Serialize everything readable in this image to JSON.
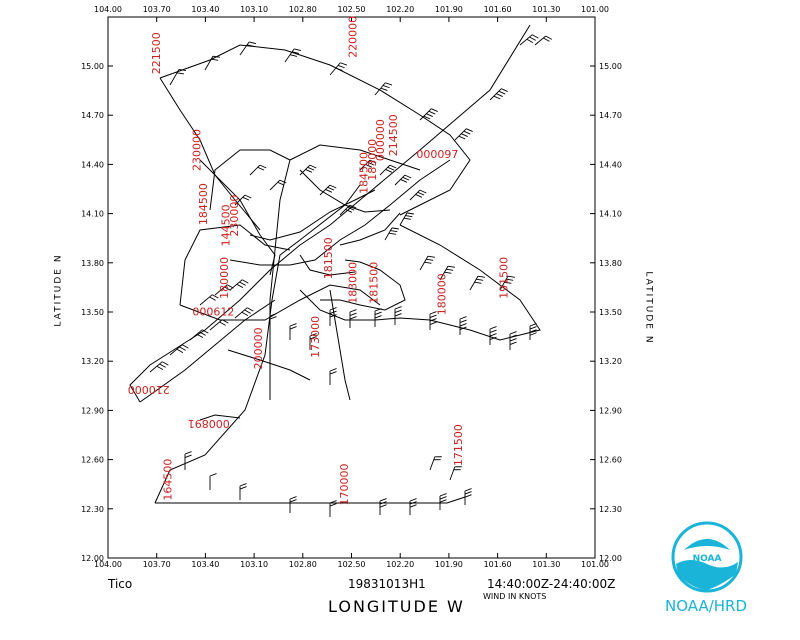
{
  "map": {
    "storm_name": "Tico",
    "flight_id": "19831013H1",
    "time_range": "14:40:00Z-24:40:00Z",
    "x_axis_label": "LONGITUDE  W",
    "y_axis_label": "LATITUDE  N",
    "wind_units": "WIND IN KNOTS",
    "agency": "NOAA/HRD",
    "logo_text": "NOAA",
    "colors": {
      "track": "#000000",
      "time_labels": "#cc2222",
      "agency": "#1ab4d8"
    },
    "lon_ticks": [
      "104.00",
      "103.70",
      "103.40",
      "103.10",
      "102.80",
      "102.50",
      "102.20",
      "101.90",
      "101.60",
      "101.30",
      "101.00"
    ],
    "lat_ticks": [
      "15.00",
      "14.70",
      "14.40",
      "14.10",
      "13.80",
      "13.50",
      "13.20",
      "12.90",
      "12.60",
      "12.30",
      "12.00"
    ],
    "lon_range": [
      104.0,
      101.0
    ],
    "lat_range": [
      12.0,
      15.3
    ],
    "time_labels": [
      {
        "text": "221500",
        "lon": 103.68,
        "lat": 14.95,
        "rot": -90
      },
      {
        "text": "220000",
        "lon": 102.47,
        "lat": 15.05,
        "rot": -90
      },
      {
        "text": "230000",
        "lon": 103.43,
        "lat": 14.36,
        "rot": -90
      },
      {
        "text": "214500",
        "lon": 102.22,
        "lat": 14.45,
        "rot": -90
      },
      {
        "text": "000097",
        "lon": 102.1,
        "lat": 14.44,
        "rot": 0
      },
      {
        "text": "000000",
        "lon": 102.3,
        "lat": 14.42,
        "rot": -90
      },
      {
        "text": "183000",
        "lon": 102.35,
        "lat": 14.3,
        "rot": -90
      },
      {
        "text": "184500",
        "lon": 102.4,
        "lat": 14.22,
        "rot": -90
      },
      {
        "text": "184500",
        "lon": 103.39,
        "lat": 14.03,
        "rot": -90
      },
      {
        "text": "144500",
        "lon": 103.25,
        "lat": 13.9,
        "rot": -90
      },
      {
        "text": "230000",
        "lon": 103.2,
        "lat": 13.96,
        "rot": -90
      },
      {
        "text": "181500",
        "lon": 102.62,
        "lat": 13.7,
        "rot": -90
      },
      {
        "text": "183000",
        "lon": 102.47,
        "lat": 13.55,
        "rot": -90
      },
      {
        "text": "181500",
        "lon": 102.34,
        "lat": 13.55,
        "rot": -90
      },
      {
        "text": "180000",
        "lon": 101.92,
        "lat": 13.48,
        "rot": -90
      },
      {
        "text": "191500",
        "lon": 101.54,
        "lat": 13.58,
        "rot": -90
      },
      {
        "text": "180000",
        "lon": 103.26,
        "lat": 13.58,
        "rot": -90
      },
      {
        "text": "000612",
        "lon": 103.48,
        "lat": 13.48,
        "rot": 0
      },
      {
        "text": "173000",
        "lon": 102.7,
        "lat": 13.22,
        "rot": -90
      },
      {
        "text": "200000",
        "lon": 103.05,
        "lat": 13.15,
        "rot": -90
      },
      {
        "text": "210000",
        "lon": 103.62,
        "lat": 13.05,
        "rot": 180
      },
      {
        "text": "000891",
        "lon": 103.25,
        "lat": 12.84,
        "rot": 180
      },
      {
        "text": "164500",
        "lon": 103.61,
        "lat": 12.35,
        "rot": -90
      },
      {
        "text": "170000",
        "lon": 102.52,
        "lat": 12.32,
        "rot": -90
      },
      {
        "text": "171500",
        "lon": 101.82,
        "lat": 12.56,
        "rot": -90
      }
    ]
  }
}
